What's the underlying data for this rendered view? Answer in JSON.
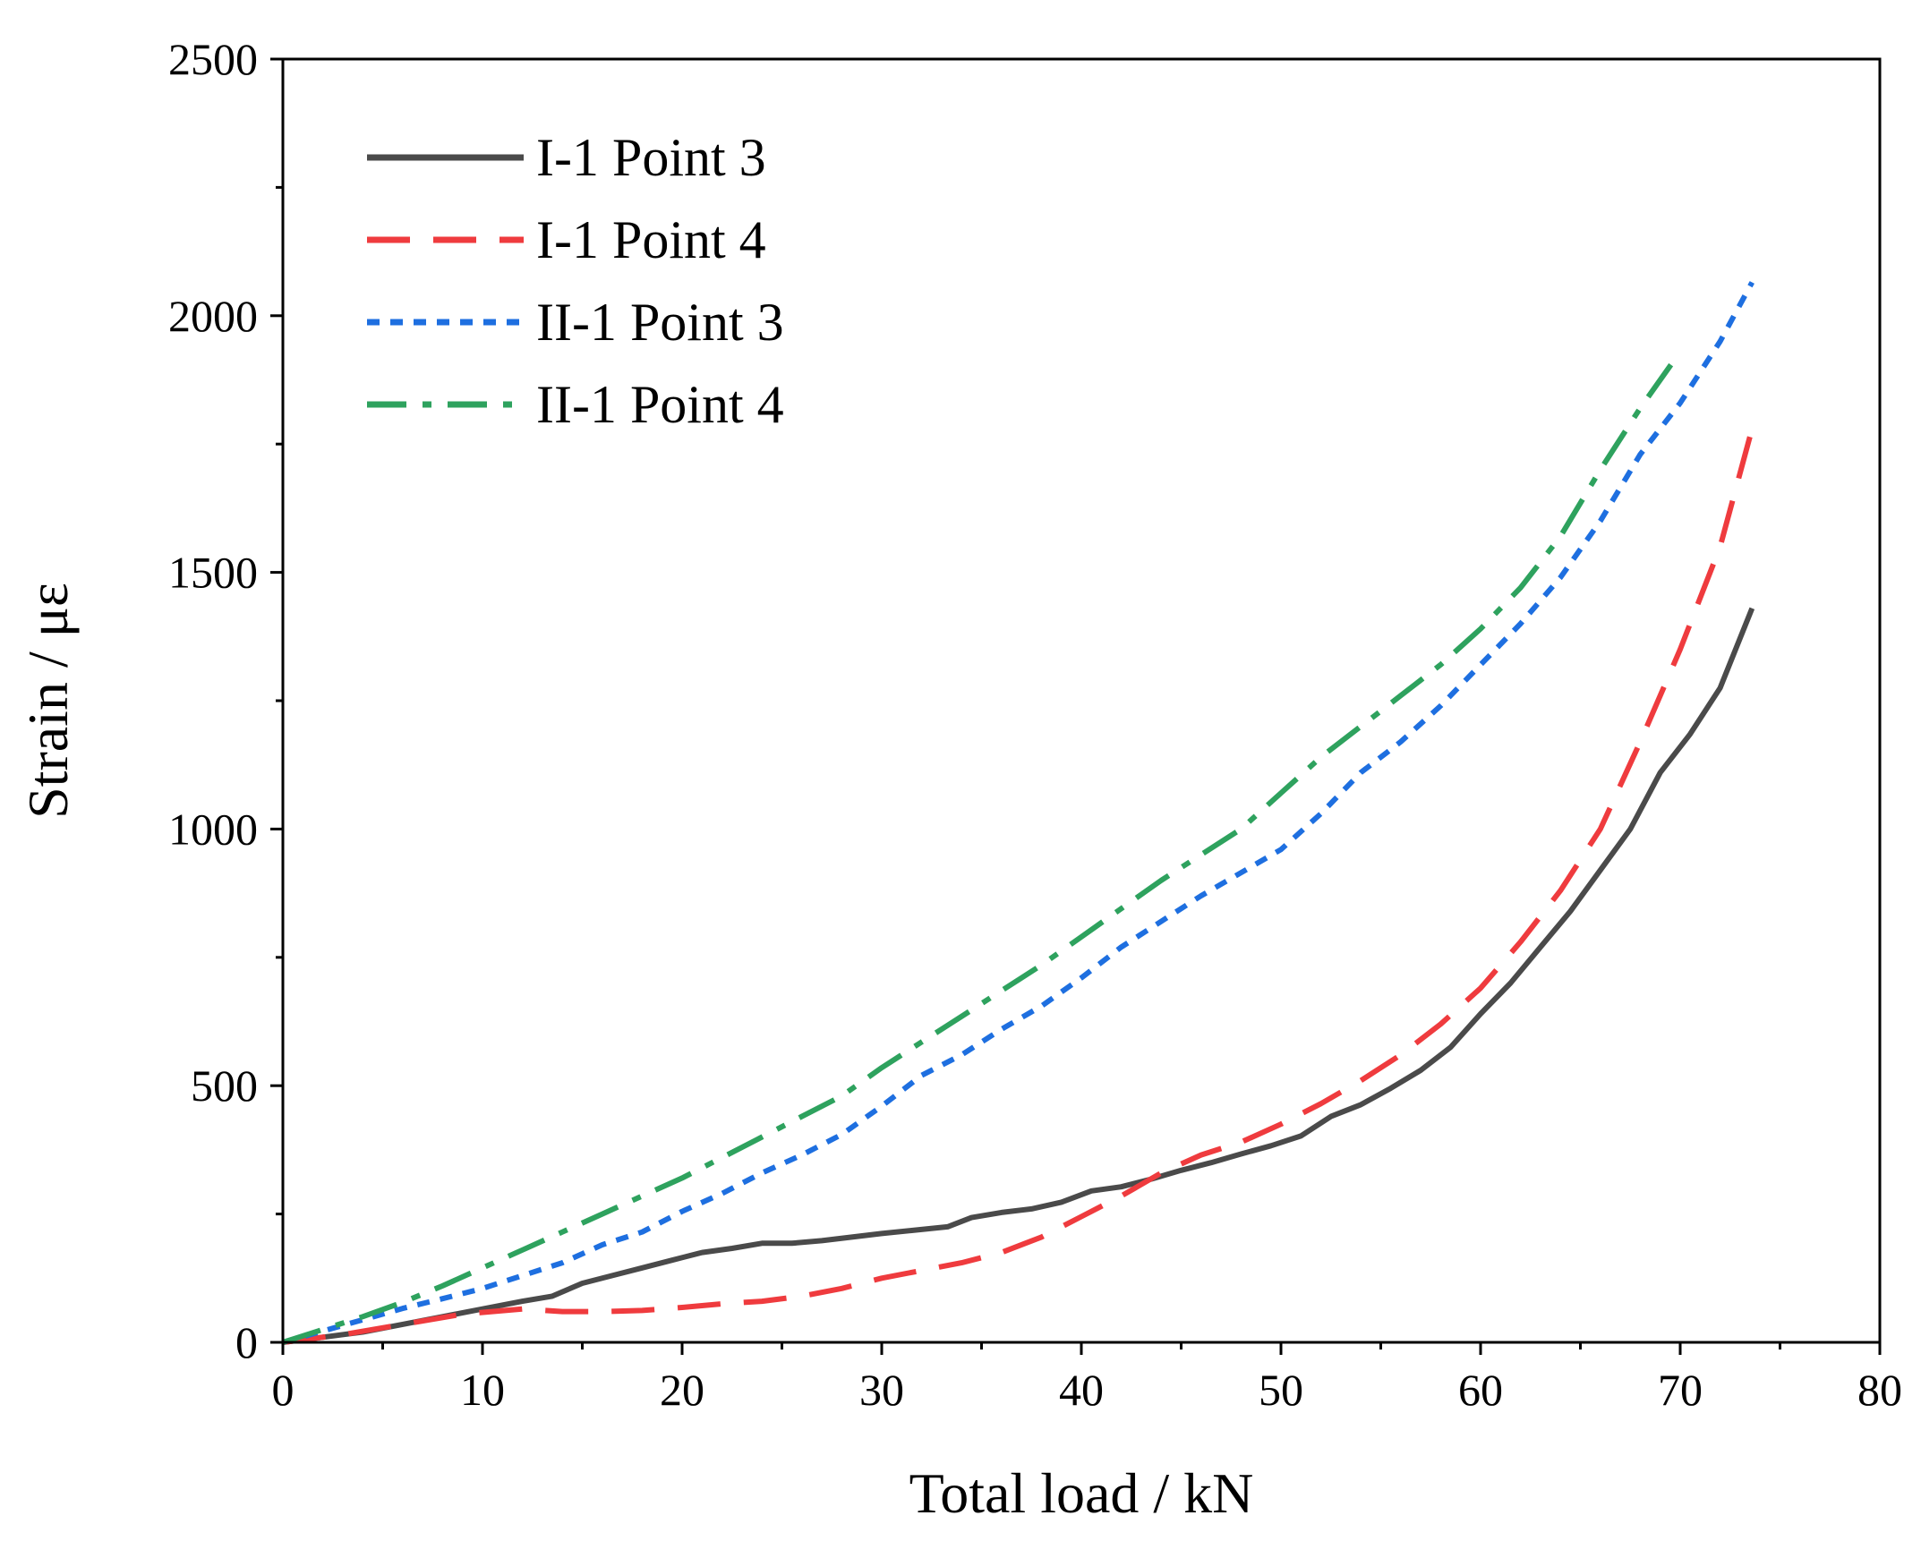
{
  "chart_data": {
    "type": "line",
    "title": "",
    "xlabel": "Total load / kN",
    "ylabel": "Strain / με",
    "xlim": [
      0,
      80
    ],
    "ylim": [
      0,
      2500
    ],
    "xticks": [
      0,
      10,
      20,
      30,
      40,
      50,
      60,
      70,
      80
    ],
    "yticks": [
      0,
      500,
      1000,
      1500,
      2000,
      2500
    ],
    "grid": false,
    "legend_position": "top-left",
    "series": [
      {
        "name": "I-1 Point 3",
        "color": "#4a4a4a",
        "style": "solid",
        "x": [
          0,
          2,
          4,
          6,
          8,
          10,
          12,
          13.5,
          15,
          16.5,
          18,
          19.5,
          21,
          22.5,
          24,
          25.5,
          27,
          28.5,
          30,
          31.5,
          33.3,
          34.5,
          36,
          37.5,
          39,
          40.5,
          42,
          43.5,
          45,
          46.5,
          48,
          49.5,
          51,
          52.5,
          54,
          55.5,
          57,
          58.5,
          60,
          61.5,
          63,
          64.5,
          66,
          67.5,
          69,
          70.5,
          72,
          73.6
        ],
        "y": [
          0,
          10,
          20,
          35,
          50,
          65,
          80,
          90,
          115,
          130,
          145,
          160,
          175,
          183,
          193,
          193,
          198,
          205,
          212,
          218,
          225,
          243,
          253,
          260,
          273,
          295,
          303,
          318,
          335,
          350,
          367,
          383,
          402,
          440,
          463,
          495,
          530,
          575,
          640,
          700,
          770,
          840,
          920,
          1000,
          1110,
          1185,
          1275,
          1430
        ]
      },
      {
        "name": "I-1 Point 4",
        "color": "#ef3b3e",
        "style": "dashed",
        "x": [
          0,
          3,
          6,
          9,
          12,
          14,
          16,
          18,
          20,
          22,
          24,
          26,
          28,
          30,
          32,
          34,
          36,
          38,
          40,
          42,
          44,
          46,
          48,
          50,
          52,
          54,
          56,
          58,
          60,
          62,
          64,
          66,
          68,
          70,
          72,
          73.6
        ],
        "y": [
          0,
          15,
          35,
          55,
          65,
          60,
          60,
          62,
          68,
          75,
          80,
          90,
          105,
          125,
          140,
          155,
          175,
          205,
          245,
          285,
          330,
          365,
          390,
          425,
          465,
          510,
          560,
          620,
          690,
          780,
          880,
          1000,
          1170,
          1350,
          1550,
          1780
        ]
      },
      {
        "name": "II-1 Point 3",
        "color": "#1e6fe0",
        "style": "dotted",
        "x": [
          0,
          2,
          4,
          6,
          8,
          10,
          12,
          14,
          16,
          18,
          20,
          22,
          24,
          26,
          28,
          30,
          32,
          34,
          36,
          38,
          40,
          42,
          44,
          46,
          48,
          50,
          52,
          54,
          56,
          58,
          60,
          62,
          64,
          66,
          68,
          70,
          72,
          73.6
        ],
        "y": [
          0,
          22,
          44,
          66,
          85,
          105,
          130,
          155,
          190,
          215,
          255,
          290,
          330,
          365,
          405,
          460,
          520,
          560,
          610,
          655,
          710,
          770,
          820,
          870,
          915,
          960,
          1030,
          1110,
          1170,
          1240,
          1320,
          1400,
          1490,
          1600,
          1730,
          1830,
          1950,
          2065
        ]
      },
      {
        "name": "II-1 Point 4",
        "color": "#2ea25e",
        "style": "dashdot",
        "x": [
          0,
          2,
          4,
          6,
          8,
          10,
          12,
          14,
          16,
          18,
          20,
          22,
          24,
          26,
          28,
          30,
          32,
          34,
          36,
          38,
          40,
          42,
          44,
          46,
          48,
          50,
          52,
          54,
          56,
          58,
          60,
          62,
          64,
          66,
          68,
          70
        ],
        "y": [
          0,
          25,
          50,
          78,
          110,
          145,
          180,
          215,
          250,
          285,
          320,
          360,
          400,
          440,
          480,
          535,
          585,
          635,
          685,
          735,
          790,
          845,
          900,
          950,
          1000,
          1070,
          1140,
          1200,
          1260,
          1320,
          1390,
          1470,
          1570,
          1700,
          1820,
          1930
        ]
      }
    ]
  }
}
